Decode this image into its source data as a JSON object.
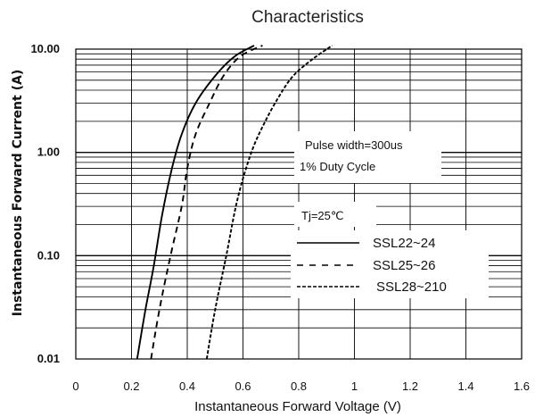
{
  "chart_data": {
    "type": "line",
    "title": "Characteristics",
    "xlabel": "Instantaneous Forward Voltage (V)",
    "ylabel": "Instantaneous Forward Current (A)",
    "xlim": [
      0,
      1.6
    ],
    "ylim": [
      0.01,
      10
    ],
    "yscale": "log",
    "grid": true,
    "x_ticks": [
      "0",
      "0.2",
      "0.4",
      "0.6",
      "0.8",
      "1",
      "1.2",
      "1.4",
      "1.6"
    ],
    "y_ticks": [
      "0.01",
      "0.10",
      "1.00",
      "10.00"
    ],
    "annotations": [
      "Pulse width=300us",
      "1% Duty Cycle",
      "Tj=25℃"
    ],
    "legend_position": "lower-right",
    "series": [
      {
        "name": "SSL22~24",
        "style": "solid",
        "x": [
          0.22,
          0.25,
          0.28,
          0.31,
          0.345,
          0.38,
          0.43,
          0.5,
          0.57,
          0.64
        ],
        "y": [
          0.01,
          0.03,
          0.08,
          0.25,
          0.7,
          1.5,
          3.0,
          5.5,
          8.5,
          11.0
        ]
      },
      {
        "name": "SSL25~26",
        "style": "dashed",
        "x": [
          0.27,
          0.3,
          0.34,
          0.38,
          0.4,
          0.43,
          0.48,
          0.53,
          0.59,
          0.67
        ],
        "y": [
          0.01,
          0.03,
          0.1,
          0.3,
          0.7,
          1.5,
          3.0,
          5.5,
          8.5,
          11.0
        ]
      },
      {
        "name": "SSL28~210",
        "style": "short-dash",
        "x": [
          0.47,
          0.5,
          0.54,
          0.58,
          0.63,
          0.68,
          0.73,
          0.78,
          0.85,
          0.92
        ],
        "y": [
          0.01,
          0.03,
          0.1,
          0.35,
          1.0,
          2.0,
          3.5,
          5.5,
          8.0,
          11.0
        ]
      }
    ]
  }
}
